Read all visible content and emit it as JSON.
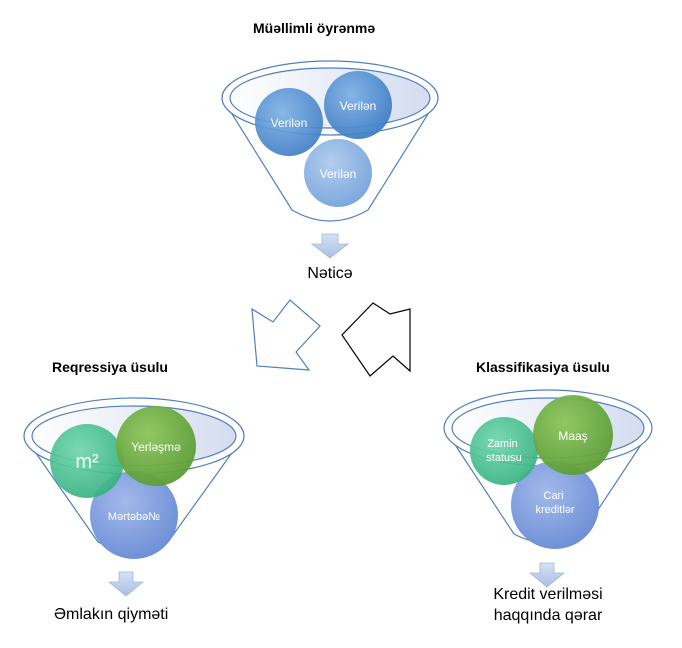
{
  "top": {
    "title": "Müəllimli öyrənmə",
    "balls": [
      "Verilən",
      "Verilən",
      "Verilən"
    ],
    "result": "Nəticə"
  },
  "left": {
    "title": "Reqressiya üsulu",
    "balls": [
      "m²",
      "Yerləşmə",
      "Mərtəbə№"
    ],
    "result": "Əmlakın qiyməti"
  },
  "right": {
    "title": "Klassifikasiya üsulu",
    "balls": [
      "Zamin statusu",
      "Maaş",
      "Cari kreditlər"
    ],
    "result_line1": "Kredit verilməsi",
    "result_line2": "haqqında qərar"
  },
  "colors": {
    "funnel_stroke": "#4f81bd",
    "ball_blue": "#5b9bd5",
    "ball_light_blue": "#8fb4e3",
    "ball_green": "#70ad47",
    "ball_teal": "#4fc59a",
    "ball_periwinkle": "#7f9fdc",
    "arrow": "#b4c7e7"
  }
}
